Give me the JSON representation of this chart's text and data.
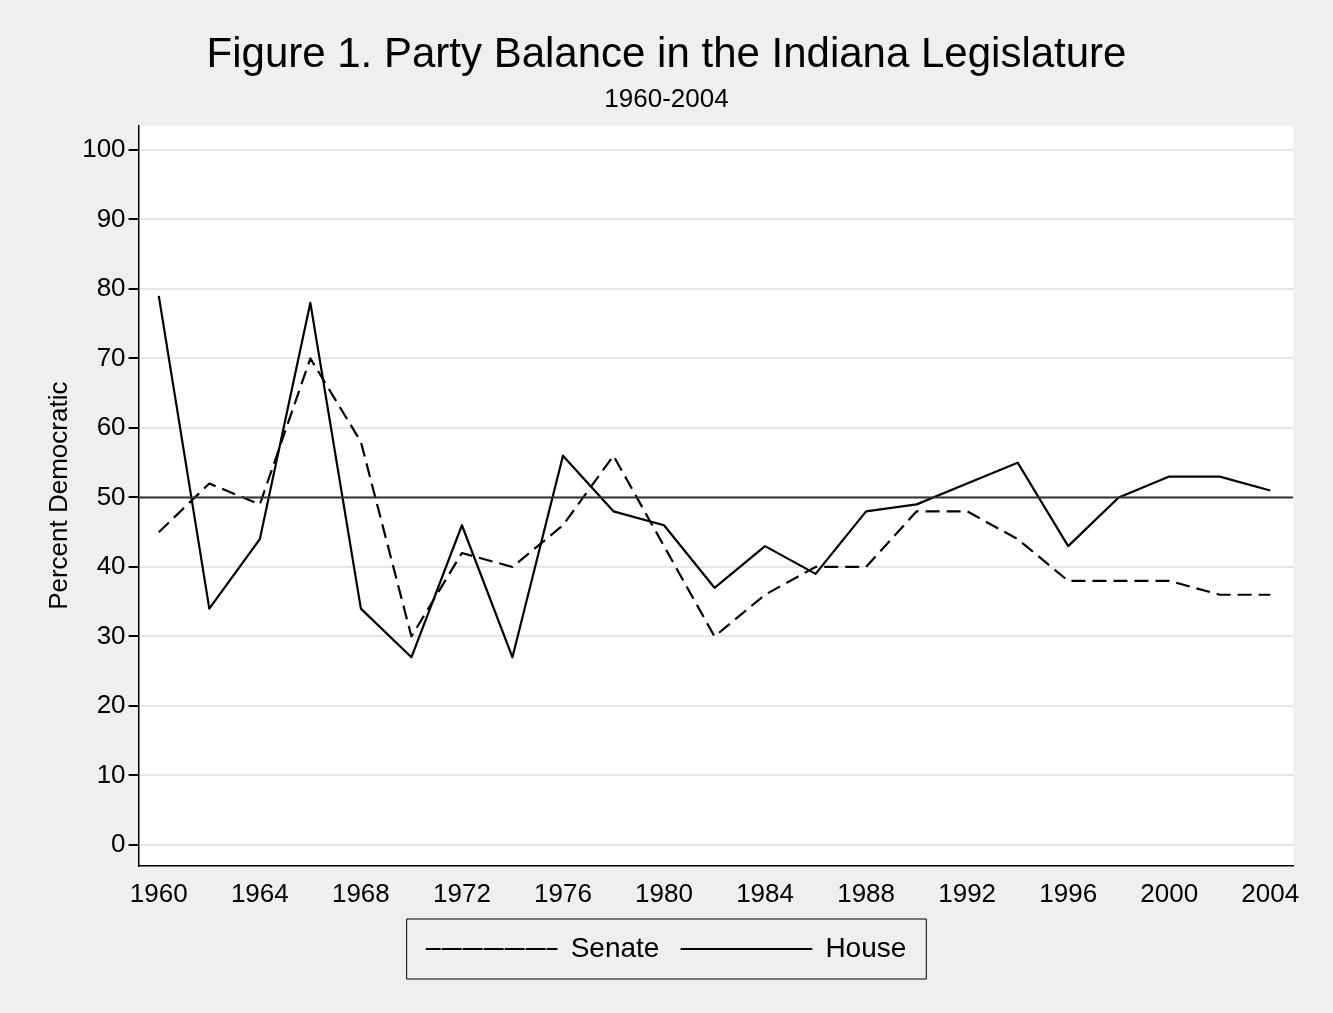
{
  "chart_data": {
    "type": "line",
    "title": "Figure 1. Party Balance in the Indiana Legislature",
    "subtitle": "1960-2004",
    "ylabel": "Percent Democratic",
    "x": [
      1960,
      1962,
      1964,
      1966,
      1968,
      1970,
      1972,
      1974,
      1976,
      1978,
      1980,
      1982,
      1984,
      1986,
      1988,
      1990,
      1992,
      1994,
      1996,
      1998,
      2000,
      2002,
      2004
    ],
    "series": [
      {
        "name": "Senate",
        "color": "#000000",
        "line_style": "dashed",
        "values": [
          45,
          52,
          49,
          70,
          58,
          30,
          42,
          40,
          46,
          56,
          43,
          30,
          36,
          40,
          40,
          48,
          48,
          44,
          38,
          38,
          38,
          36,
          36
        ]
      },
      {
        "name": "House",
        "color": "#000000",
        "line_style": "solid",
        "values": [
          79,
          34,
          44,
          78,
          34,
          27,
          46,
          27,
          56,
          48,
          46,
          37,
          43,
          39,
          48,
          49,
          52,
          55,
          43,
          50,
          53,
          53,
          51
        ]
      }
    ],
    "xlim": [
      1959.2,
      2004.9
    ],
    "xticks": [
      1960,
      1964,
      1968,
      1972,
      1976,
      1980,
      1984,
      1988,
      1992,
      1996,
      2000,
      2004
    ],
    "ylim": [
      -3,
      103.5
    ],
    "yticks": [
      0,
      10,
      20,
      30,
      40,
      50,
      60,
      70,
      80,
      90,
      100
    ],
    "ref_lines": [
      {
        "axis": "y",
        "value": 50,
        "color": "#333333"
      }
    ],
    "grid": "y",
    "legend": "bottom",
    "marker": "none"
  }
}
